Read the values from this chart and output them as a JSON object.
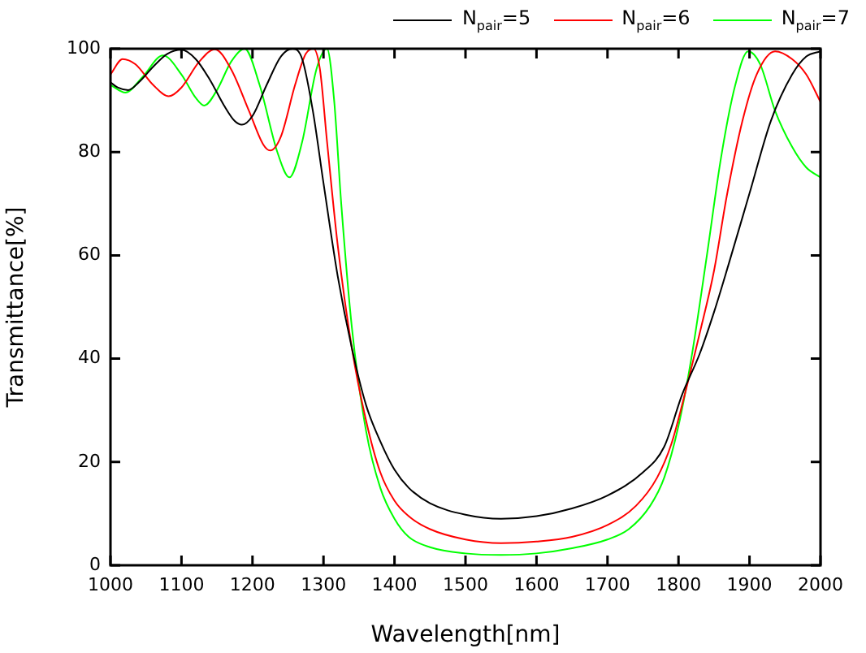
{
  "chart_data": {
    "type": "line",
    "xlabel": "Wavelength[nm]",
    "ylabel": "Transmittance[%]",
    "xlim": [
      1000,
      2000
    ],
    "xticks": [
      1000,
      1100,
      1200,
      1300,
      1400,
      1500,
      1600,
      1700,
      1800,
      1900,
      2000
    ],
    "ylim": [
      0,
      100
    ],
    "yticks": [
      0,
      20,
      40,
      60,
      80,
      100
    ],
    "grid": false,
    "legend": "top right",
    "marker": "none",
    "line_style": "solid",
    "series": [
      {
        "name": "N$_{pair}$=5",
        "color": "#000000",
        "x": [
          1000,
          1010,
          1025,
          1040,
          1060,
          1080,
          1100,
          1120,
          1140,
          1160,
          1175,
          1185,
          1200,
          1220,
          1240,
          1257,
          1270,
          1285,
          1300,
          1320,
          1340,
          1360,
          1380,
          1400,
          1420,
          1450,
          1500,
          1550,
          1600,
          1650,
          1700,
          1750,
          1780,
          1805,
          1830,
          1850,
          1870,
          1900,
          1930,
          1960,
          1980,
          2000
        ],
        "values": [
          93.5,
          92.5,
          92,
          93.5,
          96.5,
          99,
          99.8,
          98,
          94,
          89,
          86,
          85.3,
          87,
          93,
          98.5,
          100,
          98,
          88,
          74,
          56,
          42,
          31,
          24,
          18.5,
          15,
          12,
          9.8,
          9,
          9.5,
          11,
          13.5,
          18,
          23,
          33,
          41,
          49,
          58,
          72,
          86,
          95,
          98.5,
          99.5
        ]
      },
      {
        "name": "N$_{pair}$=6",
        "color": "#ff0000",
        "x": [
          1000,
          1017,
          1035,
          1060,
          1082,
          1100,
          1125,
          1147,
          1170,
          1195,
          1215,
          1225,
          1240,
          1260,
          1275,
          1286,
          1295,
          1305,
          1320,
          1340,
          1360,
          1380,
          1400,
          1420,
          1450,
          1500,
          1550,
          1600,
          1650,
          1700,
          1740,
          1770,
          1790,
          1805,
          1830,
          1850,
          1868,
          1890,
          1910,
          1936,
          1960,
          1980,
          2000
        ],
        "values": [
          95,
          98,
          97,
          93,
          90.8,
          92.5,
          97.5,
          99.9,
          96,
          88,
          81.5,
          80.3,
          83,
          93,
          99,
          100,
          96,
          82,
          62,
          42,
          28,
          18,
          12.5,
          9.5,
          7,
          5,
          4.3,
          4.6,
          5.5,
          7.8,
          11.5,
          17,
          23.5,
          31,
          45,
          57,
          71.5,
          86,
          95,
          99.5,
          98,
          95,
          89.7
        ]
      },
      {
        "name": "N$_{pair}$=7",
        "color": "#00ff00",
        "x": [
          1000,
          1021,
          1045,
          1074,
          1100,
          1120,
          1132,
          1150,
          1170,
          1189,
          1210,
          1235,
          1252,
          1270,
          1290,
          1305,
          1315,
          1325,
          1340,
          1360,
          1380,
          1400,
          1420,
          1450,
          1500,
          1550,
          1600,
          1650,
          1700,
          1730,
          1760,
          1780,
          1800,
          1818,
          1840,
          1860,
          1880,
          1898,
          1915,
          1936,
          1960,
          1980,
          2000
        ],
        "values": [
          93,
          91.5,
          94.5,
          98.7,
          95,
          90.5,
          89,
          92,
          97.5,
          100,
          93,
          80,
          75.1,
          82,
          96,
          100,
          90,
          70,
          46,
          26,
          15,
          9,
          5.5,
          3.5,
          2.3,
          2,
          2.3,
          3.3,
          5,
          7,
          11.5,
          17,
          27,
          40,
          60,
          79,
          93,
          99.5,
          97,
          88,
          81,
          77,
          75.1
        ]
      }
    ]
  }
}
